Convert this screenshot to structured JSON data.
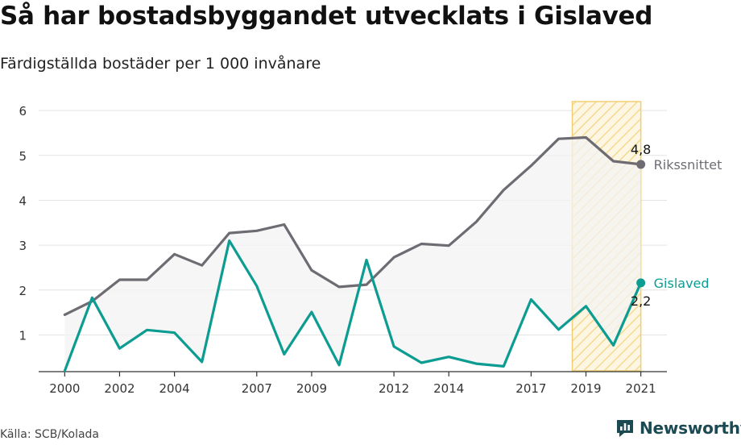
{
  "title": "Så har bostadsbyggandet utvecklats i Gislaved",
  "subtitle": "Färdigställda bostäder per 1 000 invånare",
  "source": "Källa: SCB/Kolada",
  "brand": "Newsworthy",
  "colors": {
    "riket": "#6e6c72",
    "gislaved": "#0c9c91",
    "highlight_stroke": "#f2cf73",
    "highlight_hatch": "#f4d98f",
    "fill_between": "#f3f3f3",
    "brand": "#1b4a52"
  },
  "chart_data": {
    "type": "line",
    "x": [
      2000,
      2001,
      2002,
      2003,
      2004,
      2005,
      2006,
      2007,
      2008,
      2009,
      2010,
      2011,
      2012,
      2013,
      2014,
      2015,
      2016,
      2017,
      2018,
      2019,
      2020,
      2021
    ],
    "xticks": [
      "2000",
      "2002",
      "2004",
      "2007",
      "2009",
      "2012",
      "2014",
      "2017",
      "2019",
      "2021"
    ],
    "yticks": [
      "1",
      "2",
      "3",
      "4",
      "5",
      "6"
    ],
    "ylim": [
      0.2,
      6.2
    ],
    "xlim": [
      1999.05,
      2021.95
    ],
    "grid": true,
    "highlight_range": [
      2018.5,
      2021
    ],
    "series": [
      {
        "key": "riket",
        "name": "Rikssnittet",
        "end_label": "4,8",
        "values": [
          1.45,
          1.75,
          2.23,
          2.23,
          2.8,
          2.55,
          3.27,
          3.32,
          3.46,
          2.44,
          2.07,
          2.12,
          2.73,
          3.03,
          2.99,
          3.52,
          4.23,
          4.77,
          5.37,
          5.4,
          4.87,
          4.8
        ]
      },
      {
        "key": "gislaved",
        "name": "Gislaved",
        "end_label": "2,2",
        "values": [
          0.2,
          1.83,
          0.7,
          1.11,
          1.05,
          0.4,
          3.1,
          2.09,
          0.57,
          1.51,
          0.33,
          2.67,
          0.74,
          0.38,
          0.51,
          0.36,
          0.3,
          1.79,
          1.12,
          1.64,
          0.77,
          2.16
        ]
      }
    ]
  }
}
